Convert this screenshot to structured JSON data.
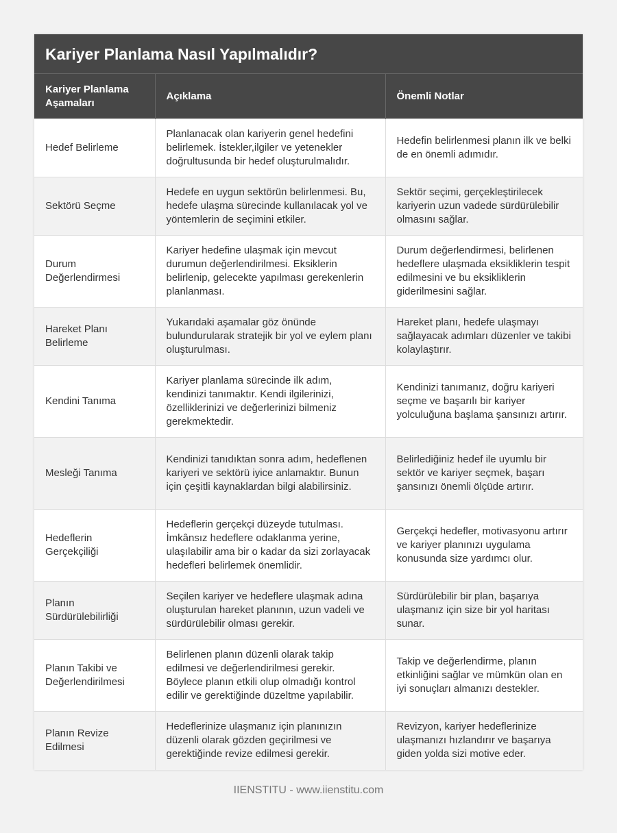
{
  "title": "Kariyer Planlama Nasıl Yapılmalıdır?",
  "headers": [
    "Kariyer Planlama Aşamaları",
    "Açıklama",
    "Önemli Notlar"
  ],
  "rows": [
    [
      "Hedef Belirleme",
      "Planlanacak olan kariyerin genel hedefini belirlemek. İstekler,ilgiler ve yetenekler doğrultusunda bir hedef oluşturulmalıdır.",
      "Hedefin belirlenmesi planın ilk ve belki de en önemli adımıdır."
    ],
    [
      "Sektörü Seçme",
      "Hedefe en uygun sektörün belirlenmesi. Bu, hedefe ulaşma sürecinde kullanılacak yol ve yöntemlerin de seçimini etkiler.",
      "Sektör seçimi, gerçekleştirilecek kariyerin uzun vadede sürdürülebilir olmasını sağlar."
    ],
    [
      "Durum Değerlendirmesi",
      "Kariyer hedefine ulaşmak için mevcut durumun değerlendirilmesi. Eksiklerin belirlenip, gelecekte yapılması gerekenlerin planlanması.",
      "Durum değerlendirmesi, belirlenen hedeflere ulaşmada eksikliklerin tespit edilmesini ve bu eksikliklerin giderilmesini sağlar."
    ],
    [
      "Hareket Planı Belirleme",
      "Yukarıdaki aşamalar göz önünde bulundurularak stratejik bir yol ve eylem planı oluşturulması.",
      "Hareket planı, hedefe ulaşmayı sağlayacak adımları düzenler ve takibi kolaylaştırır."
    ],
    [
      "Kendini Tanıma",
      "Kariyer planlama sürecinde ilk adım, kendinizi tanımaktır. Kendi ilgilerinizi, özelliklerinizi ve değerlerinizi bilmeniz gerekmektedir.",
      "Kendinizi tanımanız, doğru kariyeri seçme ve başarılı bir kariyer yolculuğuna başlama şansınızı artırır."
    ],
    [
      "Mesleği Tanıma",
      "Kendinizi tanıdıktan sonra adım, hedeflenen kariyeri ve sektörü iyice anlamaktır. Bunun için çeşitli kaynaklardan bilgi alabilirsiniz.",
      "Belirlediğiniz hedef ile uyumlu bir sektör ve kariyer seçmek, başarı şansınızı önemli ölçüde artırır."
    ],
    [
      "Hedeflerin Gerçekçiliği",
      "Hedeflerin gerçekçi düzeyde tutulması. İmkânsız hedeflere odaklanma yerine, ulaşılabilir ama bir o kadar da sizi zorlayacak hedefleri belirlemek önemlidir.",
      "Gerçekçi hedefler, motivasyonu artırır ve kariyer planınızı uygulama konusunda size yardımcı olur."
    ],
    [
      "Planın Sürdürülebilirliği",
      "Seçilen kariyer ve hedeflere ulaşmak adına oluşturulan hareket planının, uzun vadeli ve sürdürülebilir olması gerekir.",
      "Sürdürülebilir bir plan, başarıya ulaşmanız için size bir yol haritası sunar."
    ],
    [
      "Planın Takibi ve Değerlendirilmesi",
      "Belirlenen planın düzenli olarak takip edilmesi ve değerlendirilmesi gerekir. Böylece planın etkili olup olmadığı kontrol edilir ve gerektiğinde düzeltme yapılabilir.",
      "Takip ve değerlendirme, planın etkinliğini sağlar ve mümkün olan en iyi sonuçları almanızı destekler."
    ],
    [
      "Planın Revize Edilmesi",
      "Hedeflerinize ulaşmanız için planınızın düzenli olarak gözden geçirilmesi ve gerektiğinde revize edilmesi gerekir.",
      "Revizyon, kariyer hedeflerinize ulaşmanızı hızlandırır ve başarıya giden yolda sizi motive eder."
    ]
  ],
  "footer": "IIENSTITU - www.iienstitu.com"
}
